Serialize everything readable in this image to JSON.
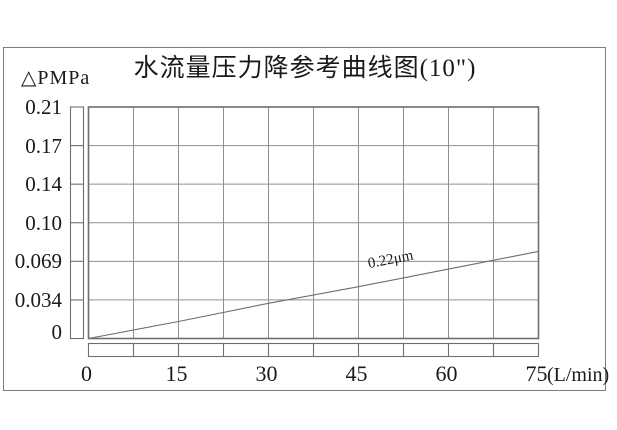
{
  "title": "水流量压力降参考曲线图(10\")",
  "y_axis": {
    "title": "△PMPa",
    "tick_labels": [
      "0.21",
      "0.17",
      "0.14",
      "0.10",
      "0.069",
      "0.034",
      "0"
    ]
  },
  "x_axis": {
    "tick_labels": [
      "0",
      "15",
      "30",
      "45",
      "60",
      "75"
    ],
    "unit_label": "(L/min)"
  },
  "colors": {
    "line": "#6e6e6e",
    "grid": "#8f8f8f",
    "frame": "#7d7d7d",
    "text": "#1a1a1a"
  },
  "chart_data": {
    "type": "line",
    "title": "水流量压力降参考曲线图(10\")",
    "xlabel": "(L/min)",
    "ylabel": "△PMPa",
    "x_range": [
      0,
      75
    ],
    "x_major_ticks": [
      0,
      15,
      30,
      45,
      60,
      75
    ],
    "x_minor_interval": 7.5,
    "y_tick_values": [
      0.21,
      0.17,
      0.14,
      0.1,
      0.069,
      0.034,
      0
    ],
    "y_scale_note": "y tick values are non-uniform but evenly spaced on the axis",
    "grid": true,
    "legend_position": "inline-label-on-curve",
    "series": [
      {
        "name": "0.22μm",
        "label": "0.22μm",
        "points": [
          [
            0,
            0
          ],
          [
            15,
            0.015
          ],
          [
            30,
            0.031
          ],
          [
            45,
            0.046
          ],
          [
            60,
            0.062
          ],
          [
            75,
            0.077
          ]
        ]
      }
    ]
  }
}
